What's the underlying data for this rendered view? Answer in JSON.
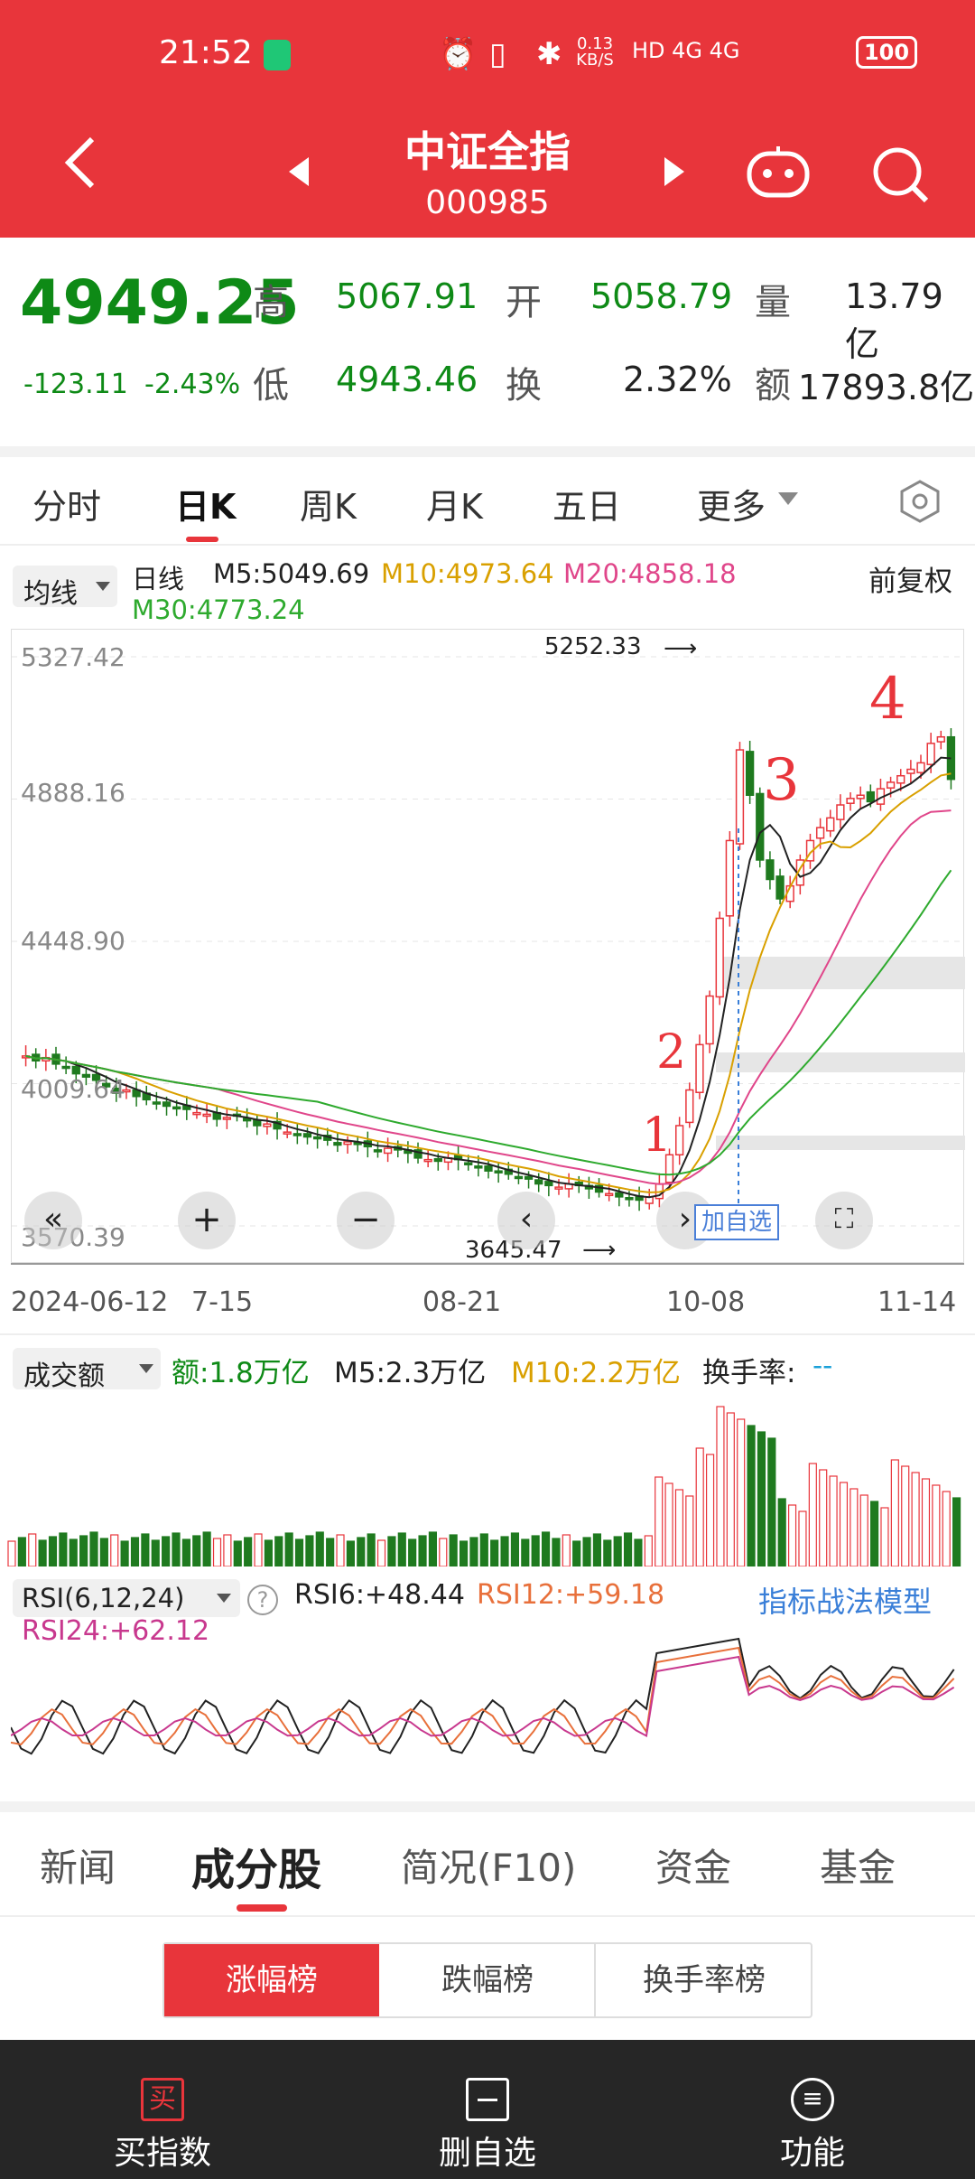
{
  "status": {
    "time": "21:52",
    "net_speed": "0.13 KB/S",
    "signal": "HD 4G 4G",
    "battery": "100"
  },
  "header": {
    "title": "中证全指",
    "code": "000985"
  },
  "quote": {
    "price": "4949.25",
    "change": "-123.11",
    "change_pct": "-2.43%",
    "high_label": "高",
    "high": "5067.91",
    "open_label": "开",
    "open": "5058.79",
    "vol_label": "量",
    "vol": "13.79亿",
    "low_label": "低",
    "low": "4943.46",
    "turn_label": "换",
    "turn": "2.32%",
    "amt_label": "额",
    "amt": "17893.8亿"
  },
  "tabs": [
    "分时",
    "日K",
    "周K",
    "月K",
    "五日",
    "更多"
  ],
  "ma_bar": {
    "dropdown": "均线",
    "period": "日线",
    "m5": "M5:5049.69",
    "m10": "M10:4973.64",
    "m20": "M20:4858.18",
    "m30": "M30:4773.24",
    "adj": "前复权"
  },
  "chart_data": {
    "type": "candlestick",
    "y_ticks": [
      "5327.42",
      "4888.16",
      "4448.90",
      "4009.64",
      "3570.39"
    ],
    "x_ticks": [
      "2024-06-12",
      "7-15",
      "08-21",
      "10-08",
      "11-14"
    ],
    "high_mark": "5252.33",
    "low_mark": "3645.47",
    "annotations": [
      "1",
      "2",
      "3",
      "4"
    ],
    "add_watch": "加自选",
    "closes": [
      4095,
      4080,
      4090,
      4070,
      4060,
      4040,
      4030,
      4020,
      4000,
      3980,
      3990,
      3970,
      3960,
      3950,
      3940,
      3935,
      3930,
      3920,
      3915,
      3900,
      3905,
      3910,
      3895,
      3880,
      3885,
      3870,
      3860,
      3850,
      3845,
      3840,
      3835,
      3820,
      3830,
      3825,
      3815,
      3800,
      3810,
      3805,
      3795,
      3780,
      3775,
      3770,
      3780,
      3775,
      3760,
      3750,
      3740,
      3735,
      3730,
      3720,
      3715,
      3700,
      3695,
      3690,
      3700,
      3695,
      3685,
      3675,
      3670,
      3660,
      3655,
      3650,
      3660,
      3700,
      3790,
      3880,
      3990,
      4130,
      4280,
      4520,
      4760,
      5040,
      4900,
      4700,
      4640,
      4580,
      4620,
      4700,
      4760,
      4800,
      4830,
      4870,
      4890,
      4900,
      4880,
      4920,
      4940,
      4960,
      4980,
      5000,
      5060,
      5080,
      4949
    ]
  },
  "volume": {
    "dropdown": "成交额",
    "amt": "额:1.8万亿",
    "m5": "M5:2.3万亿",
    "m10": "M10:2.2万亿",
    "turn_label": "换手率:",
    "turn_val": "--"
  },
  "rsi": {
    "dropdown": "RSI(6,12,24)",
    "rsi6": "RSI6:+48.44",
    "rsi12": "RSI12:+59.18",
    "rsi24": "RSI24:+62.12",
    "link": "指标战法模型"
  },
  "bottom_tabs": [
    "新闻",
    "成分股",
    "简况(F10)",
    "资金",
    "基金"
  ],
  "rank_tabs": [
    "涨幅榜",
    "跌幅榜",
    "换手率榜"
  ],
  "footer": {
    "buy": "买指数",
    "remove": "删自选",
    "func": "功能",
    "buy_icon": "买"
  }
}
